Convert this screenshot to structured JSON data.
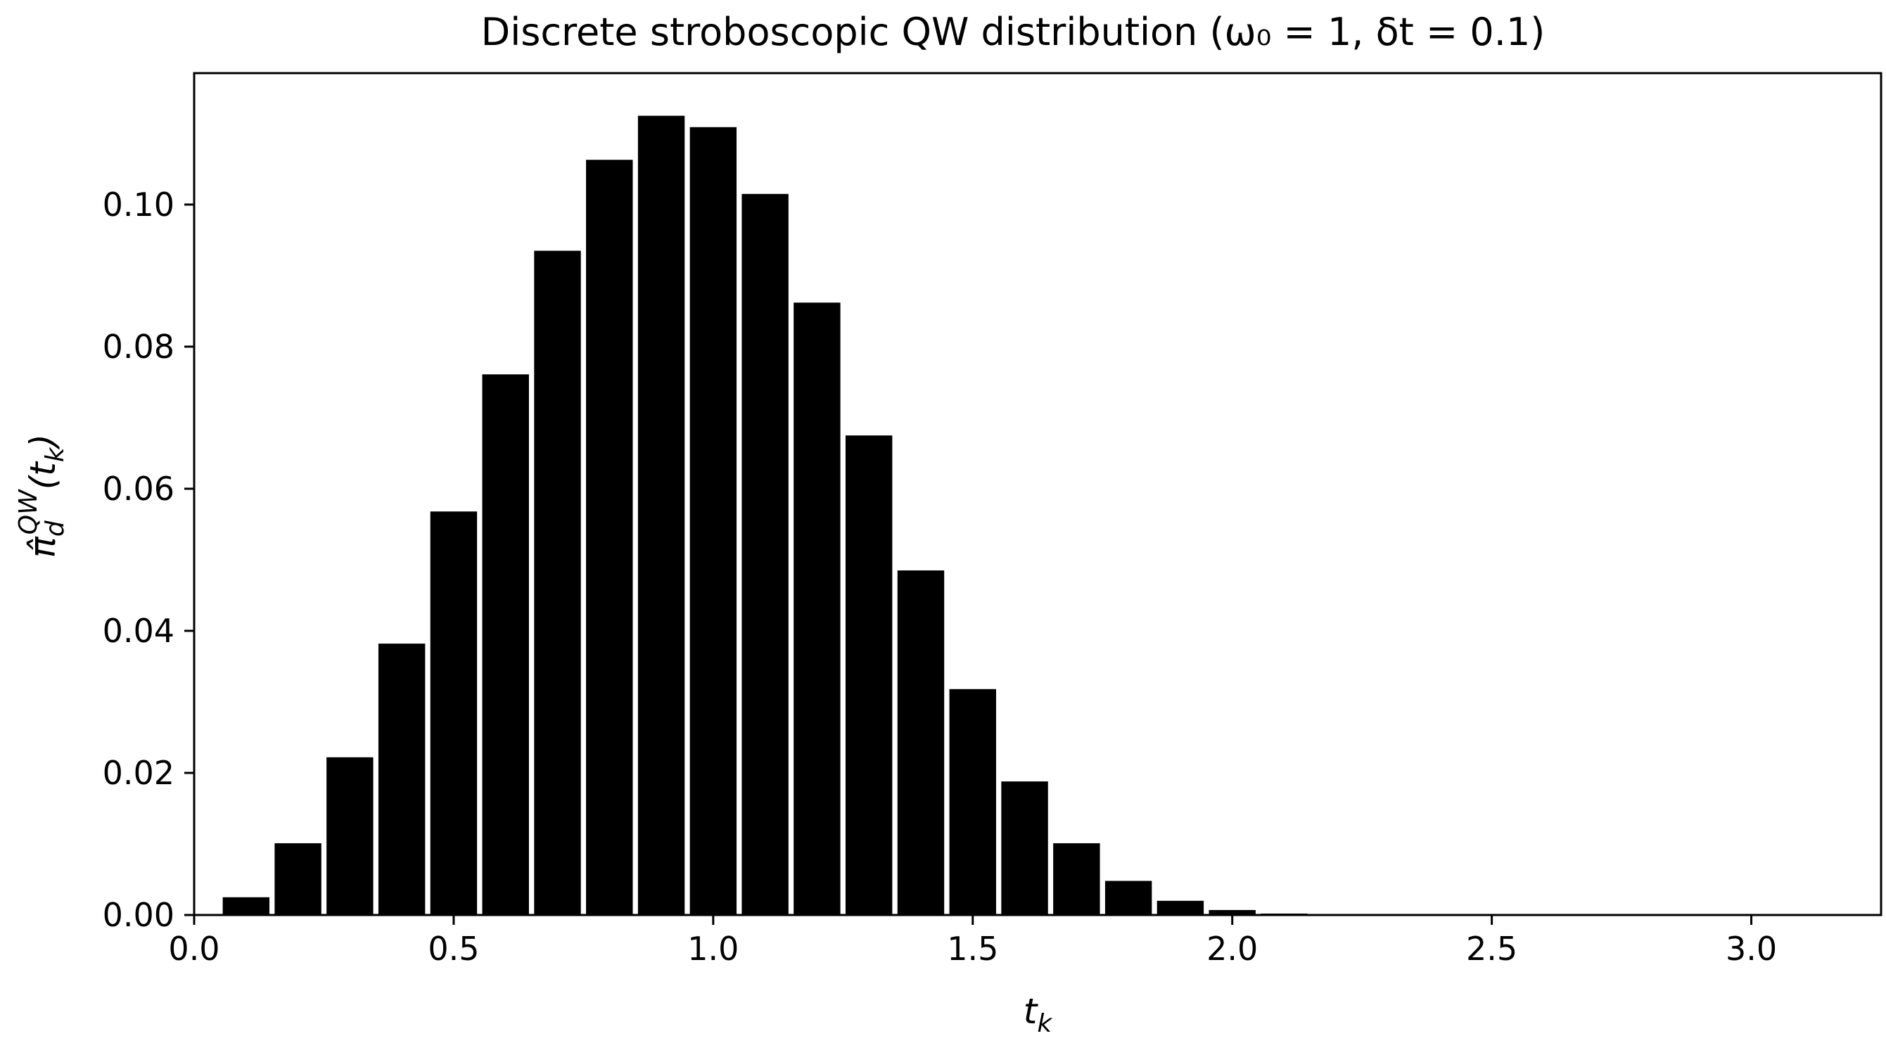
{
  "chart_data": {
    "type": "bar",
    "title": "Discrete stroboscopic QW distribution (ω₀ = 1, δt = 0.1)",
    "xlabel": "t_k",
    "ylabel": "π̂_d^QW(t_k)",
    "xlim": [
      0.0,
      3.25
    ],
    "ylim": [
      0.0,
      0.1185
    ],
    "xticks": [
      "0.0",
      "0.5",
      "1.0",
      "1.5",
      "2.0",
      "2.5",
      "3.0"
    ],
    "yticks": [
      "0.00",
      "0.02",
      "0.04",
      "0.06",
      "0.08",
      "0.10"
    ],
    "bar_width": 0.09,
    "bar_color": "#000000",
    "grid": false,
    "x": [
      0.1,
      0.2,
      0.3,
      0.4,
      0.5,
      0.6,
      0.7,
      0.8,
      0.9,
      1.0,
      1.1,
      1.2,
      1.3,
      1.4,
      1.5,
      1.6,
      1.7,
      1.8,
      1.9,
      2.0,
      2.1,
      2.2,
      2.3,
      2.4,
      2.5,
      2.6,
      2.7,
      2.8,
      2.9,
      3.0,
      3.1,
      3.2
    ],
    "values": [
      0.0025,
      0.0101,
      0.0222,
      0.0382,
      0.0568,
      0.0761,
      0.0935,
      0.1063,
      0.1125,
      0.1109,
      0.1015,
      0.0862,
      0.0675,
      0.0485,
      0.0318,
      0.0188,
      0.0101,
      0.0048,
      0.002,
      0.0007,
      0.0002,
      0.0001,
      0.0,
      0.0,
      0.0,
      0.0,
      0.0,
      0.0,
      0.0,
      0.0,
      0.0,
      0.0
    ]
  }
}
